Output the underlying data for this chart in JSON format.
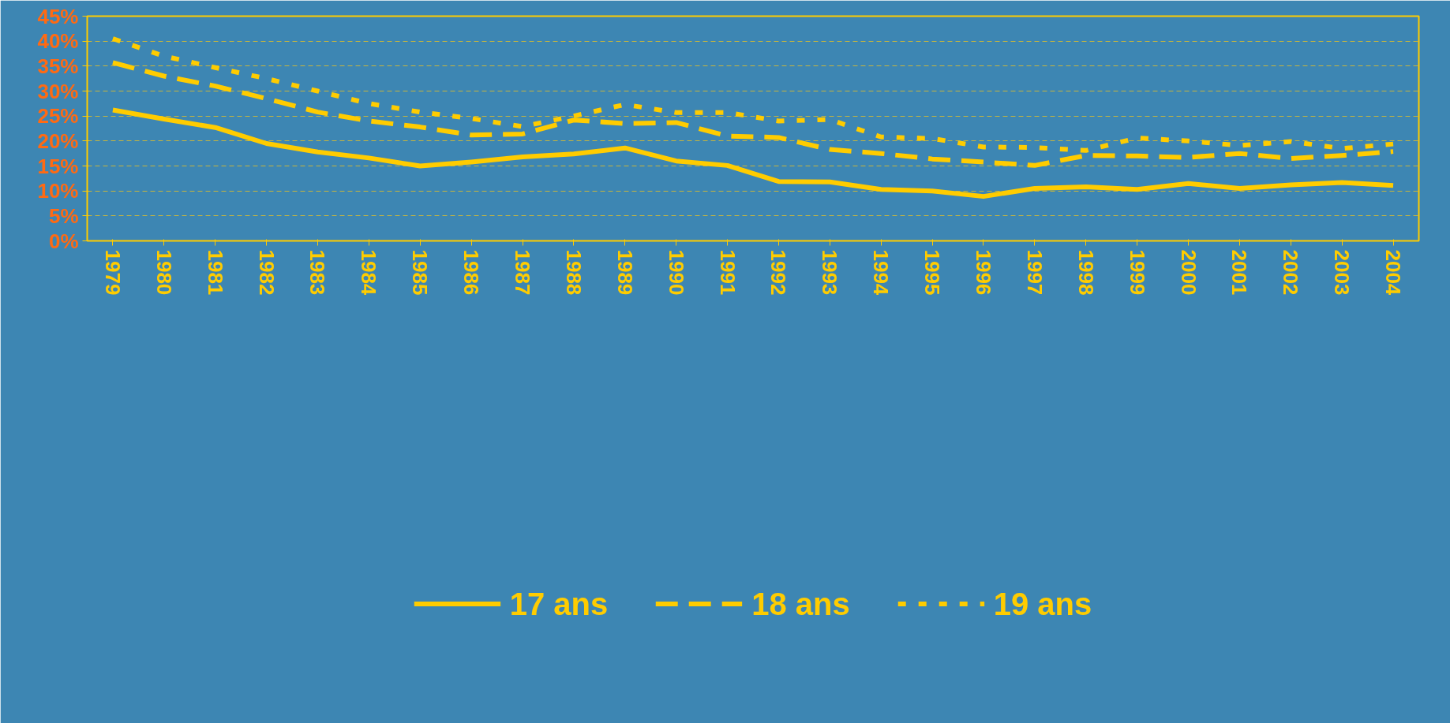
{
  "chart_data": {
    "type": "line",
    "categories": [
      "1979",
      "1980",
      "1981",
      "1982",
      "1983",
      "1984",
      "1985",
      "1986",
      "1987",
      "1988",
      "1989",
      "1990",
      "1991",
      "1992",
      "1993",
      "1994",
      "1995",
      "1996",
      "1997",
      "1998",
      "1999",
      "2000",
      "2001",
      "2002",
      "2003",
      "2004"
    ],
    "series": [
      {
        "name": "17 ans",
        "color": "#ffcc00",
        "line_style": "solid",
        "values": [
          26.2,
          24.4,
          22.7,
          19.5,
          17.8,
          16.6,
          15.0,
          15.8,
          16.8,
          17.4,
          18.6,
          16.0,
          15.1,
          11.9,
          11.8,
          10.3,
          10.0,
          8.9,
          10.5,
          10.8,
          10.3,
          11.5,
          10.5,
          11.2,
          11.7,
          11.1
        ]
      },
      {
        "name": "18 ans",
        "color": "#ffcc00",
        "line_style": "dashed",
        "values": [
          35.7,
          33.0,
          31.0,
          28.5,
          25.8,
          24.0,
          22.8,
          21.2,
          21.4,
          24.2,
          23.5,
          23.7,
          21.0,
          20.7,
          18.3,
          17.5,
          16.4,
          15.8,
          15.1,
          17.1,
          17.0,
          16.7,
          17.5,
          16.5,
          17.1,
          17.9
        ]
      },
      {
        "name": "19 ans",
        "color": "#ffcc00",
        "line_style": "dotted",
        "values": [
          40.5,
          37.0,
          34.7,
          32.5,
          30.0,
          27.5,
          25.8,
          24.5,
          22.9,
          25.0,
          27.3,
          25.7,
          25.7,
          24.0,
          24.3,
          20.8,
          20.5,
          18.8,
          18.7,
          18.1,
          20.6,
          20.0,
          19.1,
          19.9,
          18.5,
          19.4
        ]
      }
    ],
    "ylim": [
      0,
      45
    ],
    "yticks": [
      {
        "value": 0,
        "label": "0%"
      },
      {
        "value": 5,
        "label": "5%"
      },
      {
        "value": 10,
        "label": "10%"
      },
      {
        "value": 15,
        "label": "15%"
      },
      {
        "value": 20,
        "label": "20%"
      },
      {
        "value": 25,
        "label": "25%"
      },
      {
        "value": 30,
        "label": "30%"
      },
      {
        "value": 35,
        "label": "35%"
      },
      {
        "value": 40,
        "label": "40%"
      },
      {
        "value": 45,
        "label": "45%"
      }
    ],
    "grid": "y",
    "legend": "bottom",
    "marker": "none"
  }
}
